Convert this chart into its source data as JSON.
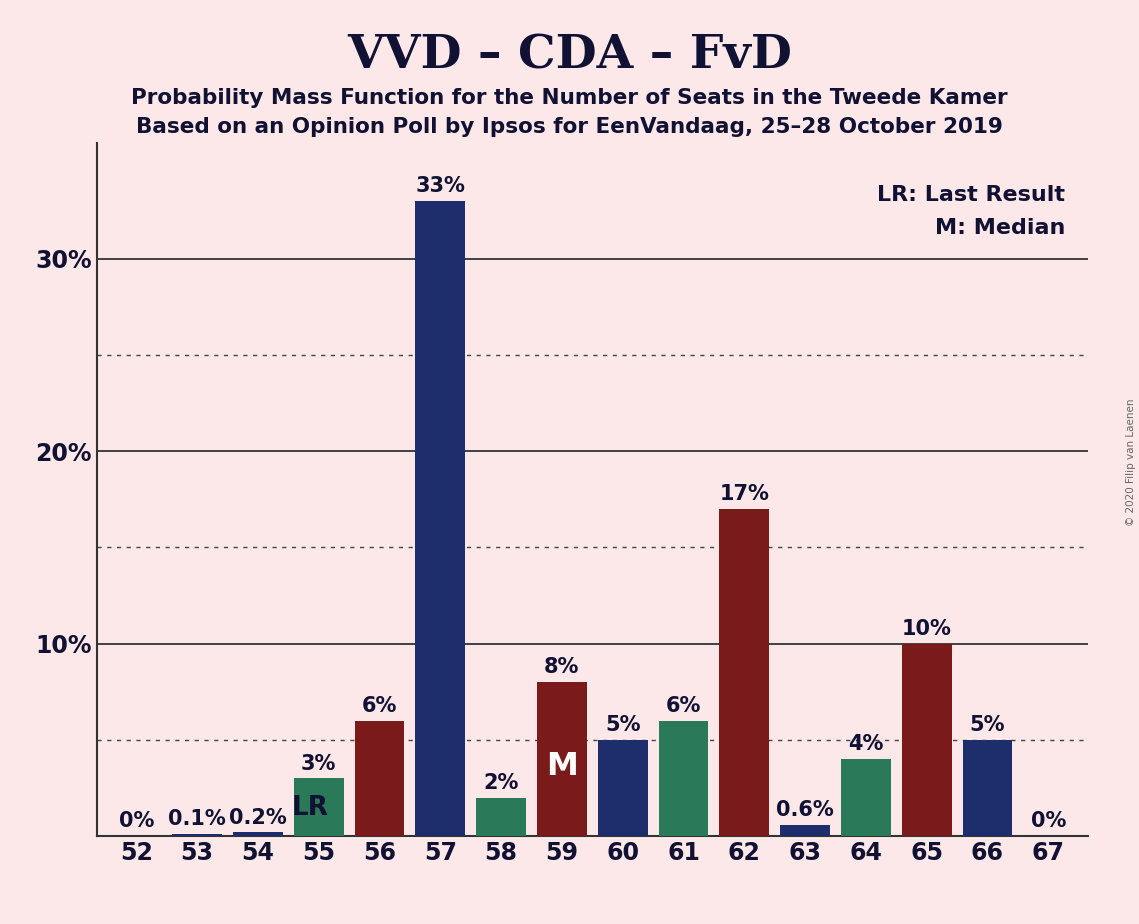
{
  "title": "VVD – CDA – FvD",
  "subtitle1": "Probability Mass Function for the Number of Seats in the Tweede Kamer",
  "subtitle2": "Based on an Opinion Poll by Ipsos for EenVandaag, 25–28 October 2019",
  "copyright": "© 2020 Filip van Laenen",
  "legend_lr": "LR: Last Result",
  "legend_m": "M: Median",
  "seats": [
    52,
    53,
    54,
    55,
    56,
    57,
    58,
    59,
    60,
    61,
    62,
    63,
    64,
    65,
    66,
    67
  ],
  "values": [
    0.0,
    0.1,
    0.2,
    3.0,
    6.0,
    33.0,
    2.0,
    8.0,
    5.0,
    6.0,
    17.0,
    0.6,
    4.0,
    10.0,
    5.0,
    0.0
  ],
  "bar_colors": [
    "#1e2d6b",
    "#1e2d6b",
    "#1e2d6b",
    "#2a7a5a",
    "#7a1a1a",
    "#1e2d6b",
    "#2a7a5a",
    "#7a1a1a",
    "#1e2d6b",
    "#2a7a5a",
    "#7a1a1a",
    "#1e2d6b",
    "#2a7a5a",
    "#7a1a1a",
    "#1e2d6b",
    "#2a7a5a"
  ],
  "labels": [
    "0%",
    "0.1%",
    "0.2%",
    "3%",
    "6%",
    "33%",
    "2%",
    "8%",
    "5%",
    "6%",
    "17%",
    "0.6%",
    "4%",
    "10%",
    "5%",
    "0%"
  ],
  "lr_seat_idx": 2,
  "median_seat_idx": 7,
  "background_color": "#fce8e8",
  "ylim_max": 36,
  "solid_yticks": [
    10,
    20,
    30
  ],
  "dotted_yticks": [
    5,
    15,
    25
  ],
  "title_fontsize": 34,
  "subtitle_fontsize": 15.5,
  "axis_fontsize": 17,
  "bar_label_fontsize": 15
}
